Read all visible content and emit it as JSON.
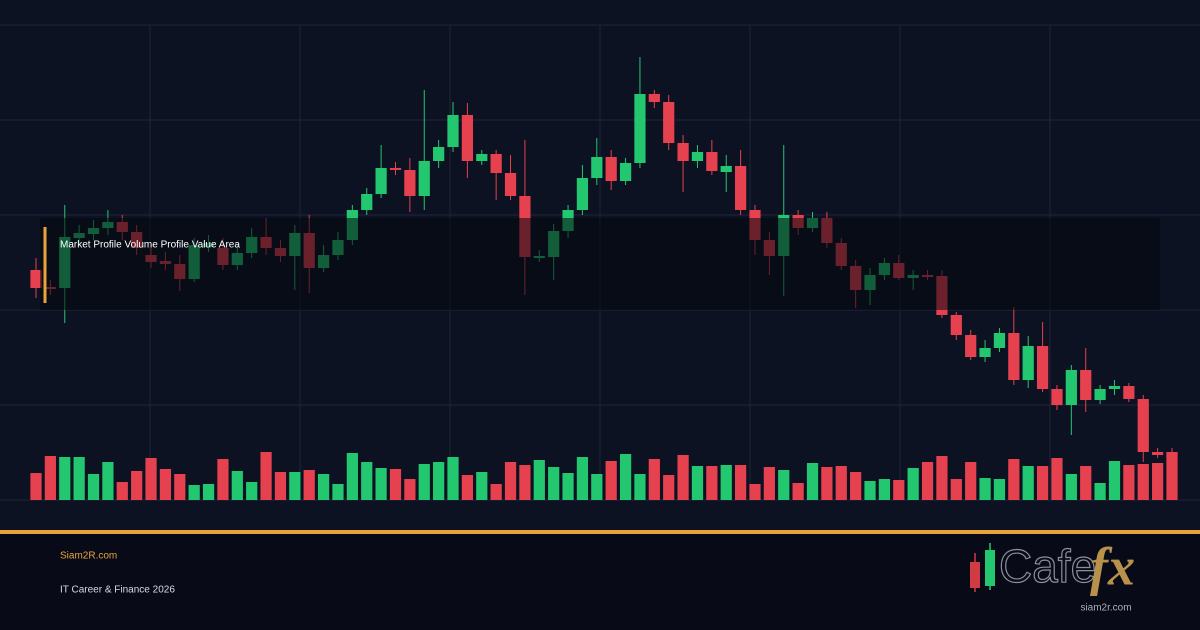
{
  "chart_data": {
    "type": "candlestick",
    "annotation": "Market Profile Volume Profile Value Area",
    "open": [
      230,
      213,
      212,
      262,
      266,
      272,
      278,
      268,
      245,
      239,
      236,
      221,
      253,
      252,
      235,
      247,
      263,
      252,
      244,
      267,
      232,
      245,
      260,
      290,
      306,
      332,
      330,
      304,
      339,
      353,
      385,
      339,
      346,
      327,
      304,
      242,
      243,
      269,
      290,
      322,
      343,
      319,
      337,
      406,
      398,
      357,
      339,
      348,
      328,
      334,
      290,
      260,
      244,
      285,
      272,
      282,
      257,
      234,
      210,
      225,
      237,
      222,
      225,
      224,
      185,
      165,
      143,
      152,
      167,
      120,
      154,
      111,
      95,
      130,
      100,
      111,
      114,
      101,
      48,
      48
    ],
    "high": [
      242,
      220,
      295,
      275,
      280,
      290,
      285,
      275,
      255,
      248,
      245,
      262,
      265,
      262,
      255,
      272,
      282,
      260,
      275,
      285,
      255,
      268,
      295,
      312,
      355,
      338,
      342,
      410,
      360,
      398,
      397,
      350,
      350,
      345,
      360,
      250,
      276,
      295,
      335,
      362,
      350,
      342,
      443,
      410,
      405,
      365,
      355,
      360,
      345,
      350,
      295,
      268,
      355,
      290,
      288,
      288,
      262,
      240,
      232,
      242,
      245,
      230,
      230,
      230,
      188,
      170,
      160,
      172,
      193,
      164,
      178,
      115,
      135,
      152,
      115,
      120,
      117,
      105,
      52,
      52
    ],
    "low": [
      202,
      205,
      177,
      255,
      260,
      265,
      260,
      245,
      232,
      230,
      209,
      218,
      248,
      230,
      230,
      242,
      245,
      238,
      210,
      207,
      228,
      240,
      255,
      285,
      302,
      325,
      288,
      290,
      332,
      348,
      322,
      335,
      300,
      300,
      205,
      238,
      220,
      262,
      285,
      315,
      310,
      315,
      332,
      392,
      350,
      308,
      332,
      325,
      308,
      285,
      245,
      225,
      204,
      265,
      268,
      252,
      230,
      192,
      195,
      220,
      220,
      210,
      220,
      182,
      160,
      140,
      138,
      148,
      115,
      112,
      108,
      90,
      65,
      88,
      96,
      105,
      98,
      38,
      42,
      40
    ],
    "close": [
      212,
      211,
      263,
      267,
      272,
      278,
      268,
      252,
      238,
      236,
      221,
      255,
      257,
      235,
      247,
      263,
      252,
      244,
      267,
      232,
      245,
      260,
      290,
      306,
      332,
      330,
      304,
      339,
      353,
      385,
      339,
      346,
      327,
      304,
      243,
      244,
      269,
      290,
      322,
      343,
      319,
      337,
      406,
      398,
      357,
      339,
      348,
      329,
      334,
      290,
      260,
      244,
      285,
      272,
      282,
      257,
      234,
      210,
      225,
      237,
      222,
      225,
      223,
      185,
      165,
      143,
      152,
      167,
      120,
      154,
      111,
      95,
      130,
      100,
      111,
      114,
      101,
      48,
      45,
      43
    ],
    "volume": [
      27,
      44,
      43,
      43,
      26,
      38,
      18,
      29,
      42,
      31,
      26,
      15,
      16,
      41,
      29,
      18,
      48,
      28,
      28,
      30,
      26,
      16,
      47,
      38,
      32,
      31,
      21,
      36,
      38,
      43,
      25,
      28,
      16,
      38,
      35,
      40,
      33,
      27,
      43,
      26,
      39,
      46,
      26,
      41,
      25,
      45,
      34,
      34,
      35,
      35,
      16,
      33,
      30,
      17,
      37,
      33,
      34,
      28,
      19,
      21,
      20,
      32,
      38,
      44,
      21,
      38,
      22,
      21,
      41,
      34,
      34,
      42,
      26,
      34,
      17,
      39,
      35,
      36,
      37,
      48
    ],
    "ylim": [
      0,
      475
    ],
    "volume_lim": [
      0,
      100
    ],
    "up_color": "#22c76f",
    "down_color": "#e5414f"
  },
  "footer": {
    "site": "Siam2R.com",
    "tagline": "IT Career & Finance 2026",
    "logo": {
      "word": "Cafe",
      "accent": "fx",
      "url": "siam2r.com"
    }
  }
}
